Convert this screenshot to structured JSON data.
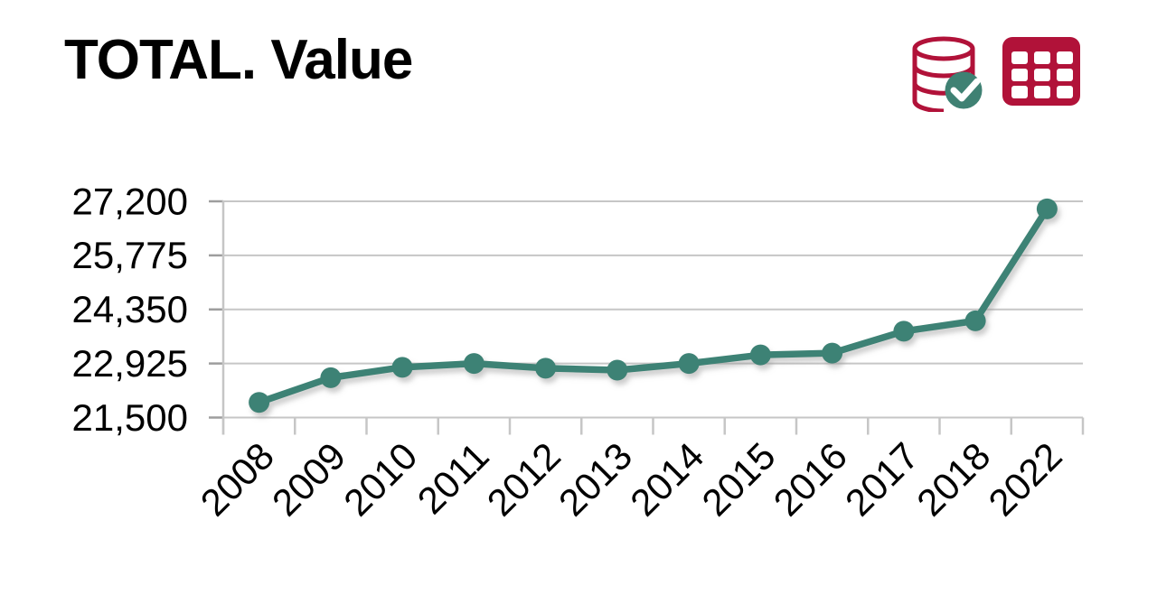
{
  "header": {
    "title": "TOTAL. Value"
  },
  "toolbar": {
    "icons": [
      {
        "name": "database-check-icon",
        "meaning": "data source validated"
      },
      {
        "name": "table-icon",
        "meaning": "show data table"
      }
    ]
  },
  "colors": {
    "accent_crimson": "#b11239",
    "series_teal": "#3e8274",
    "check_badge_teal": "#3f8173",
    "grid_gray": "#c6c6c6",
    "tick_gray": "#9e9e9e",
    "label_black": "#000000",
    "shadow_gray": "#9a9a9a",
    "background": "#ffffff"
  },
  "chart_data": {
    "type": "line",
    "title": "TOTAL. Value",
    "categories": [
      "2008",
      "2009",
      "2010",
      "2011",
      "2012",
      "2013",
      "2014",
      "2015",
      "2016",
      "2017",
      "2018",
      "2022"
    ],
    "series": [
      {
        "name": "TOTAL",
        "values": [
          21900,
          22550,
          22825,
          22925,
          22800,
          22750,
          22925,
          23150,
          23200,
          23775,
          24050,
          27000
        ]
      }
    ],
    "xlabel": "",
    "ylabel": "",
    "ylim": [
      21500,
      27200
    ],
    "y_ticks": [
      {
        "value": 21500,
        "label": "21,500"
      },
      {
        "value": 22925,
        "label": "22,925"
      },
      {
        "value": 24350,
        "label": "24,350"
      },
      {
        "value": 25775,
        "label": "25,775"
      },
      {
        "value": 27200,
        "label": "27,200"
      }
    ],
    "grid": "horizontal",
    "legend_position": "none",
    "marker": "circle",
    "x_label_rotation_deg": 45
  }
}
